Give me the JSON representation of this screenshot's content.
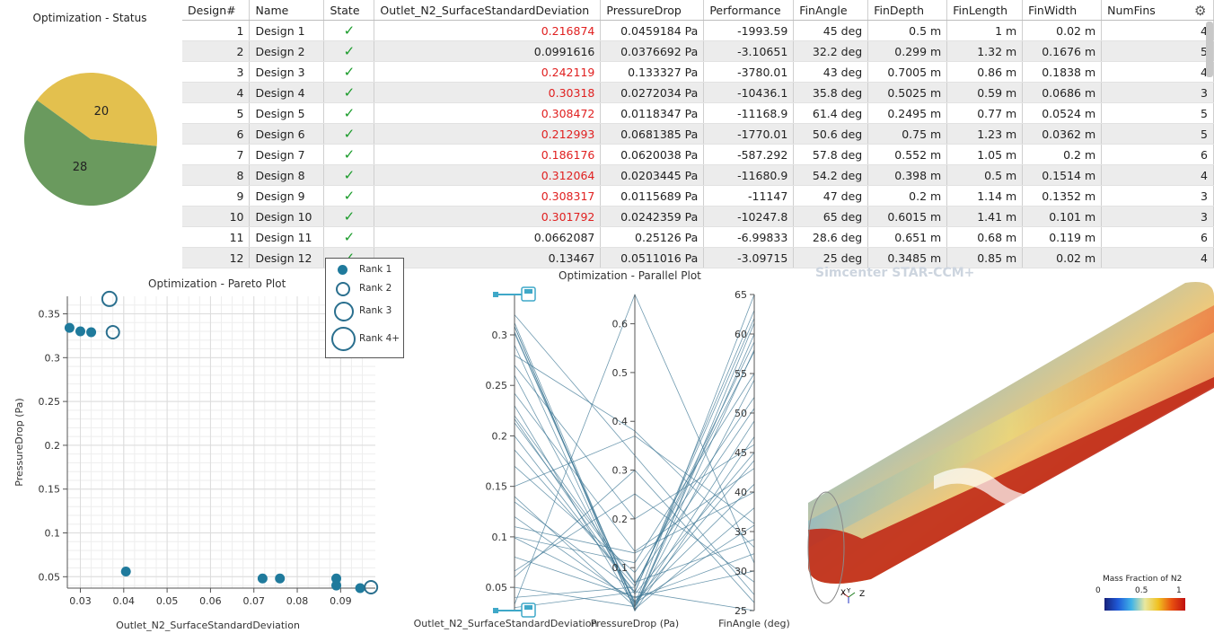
{
  "status_panel": {
    "title": "Optimization - Status",
    "slices": [
      {
        "label": "20",
        "value": 20,
        "color": "#e3c04e"
      },
      {
        "label": "28",
        "value": 28,
        "color": "#6a9a5e"
      }
    ]
  },
  "table": {
    "columns": [
      "Design#",
      "Name",
      "State",
      "Outlet_N2_SurfaceStandardDeviation",
      "PressureDrop",
      "Performance",
      "FinAngle",
      "FinDepth",
      "FinLength",
      "FinWidth",
      "NumFins"
    ],
    "rows": [
      {
        "id": "1",
        "name": "Design 1",
        "state": "✓",
        "std": "0.216874",
        "std_red": true,
        "pd": "0.0459184 Pa",
        "perf": "-1993.59",
        "angle": "45 deg",
        "depth": "0.5 m",
        "length": "1 m",
        "width": "0.02 m",
        "fins": "4"
      },
      {
        "id": "2",
        "name": "Design 2",
        "state": "✓",
        "std": "0.0991616",
        "std_red": false,
        "pd": "0.0376692 Pa",
        "perf": "-3.10651",
        "angle": "32.2 deg",
        "depth": "0.299 m",
        "length": "1.32 m",
        "width": "0.1676 m",
        "fins": "5"
      },
      {
        "id": "3",
        "name": "Design 3",
        "state": "✓",
        "std": "0.242119",
        "std_red": true,
        "pd": "0.133327 Pa",
        "perf": "-3780.01",
        "angle": "43 deg",
        "depth": "0.7005 m",
        "length": "0.86 m",
        "width": "0.1838 m",
        "fins": "4"
      },
      {
        "id": "4",
        "name": "Design 4",
        "state": "✓",
        "std": "0.30318",
        "std_red": true,
        "pd": "0.0272034 Pa",
        "perf": "-10436.1",
        "angle": "35.8 deg",
        "depth": "0.5025 m",
        "length": "0.59 m",
        "width": "0.0686 m",
        "fins": "3"
      },
      {
        "id": "5",
        "name": "Design 5",
        "state": "✓",
        "std": "0.308472",
        "std_red": true,
        "pd": "0.0118347 Pa",
        "perf": "-11168.9",
        "angle": "61.4 deg",
        "depth": "0.2495 m",
        "length": "0.77 m",
        "width": "0.0524 m",
        "fins": "5"
      },
      {
        "id": "6",
        "name": "Design 6",
        "state": "✓",
        "std": "0.212993",
        "std_red": true,
        "pd": "0.0681385 Pa",
        "perf": "-1770.01",
        "angle": "50.6 deg",
        "depth": "0.75 m",
        "length": "1.23 m",
        "width": "0.0362 m",
        "fins": "5"
      },
      {
        "id": "7",
        "name": "Design 7",
        "state": "✓",
        "std": "0.186176",
        "std_red": true,
        "pd": "0.0620038 Pa",
        "perf": "-587.292",
        "angle": "57.8 deg",
        "depth": "0.552 m",
        "length": "1.05 m",
        "width": "0.2 m",
        "fins": "6"
      },
      {
        "id": "8",
        "name": "Design 8",
        "state": "✓",
        "std": "0.312064",
        "std_red": true,
        "pd": "0.0203445 Pa",
        "perf": "-11680.9",
        "angle": "54.2 deg",
        "depth": "0.398 m",
        "length": "0.5 m",
        "width": "0.1514 m",
        "fins": "4"
      },
      {
        "id": "9",
        "name": "Design 9",
        "state": "✓",
        "std": "0.308317",
        "std_red": true,
        "pd": "0.0115689 Pa",
        "perf": "-11147",
        "angle": "47 deg",
        "depth": "0.2 m",
        "length": "1.14 m",
        "width": "0.1352 m",
        "fins": "3"
      },
      {
        "id": "10",
        "name": "Design 10",
        "state": "✓",
        "std": "0.301792",
        "std_red": true,
        "pd": "0.0242359 Pa",
        "perf": "-10247.8",
        "angle": "65 deg",
        "depth": "0.6015 m",
        "length": "1.41 m",
        "width": "0.101 m",
        "fins": "3"
      },
      {
        "id": "11",
        "name": "Design 11",
        "state": "✓",
        "std": "0.0662087",
        "std_red": false,
        "pd": "0.25126 Pa",
        "perf": "-6.99833",
        "angle": "28.6 deg",
        "depth": "0.651 m",
        "length": "0.68 m",
        "width": "0.119 m",
        "fins": "6"
      },
      {
        "id": "12",
        "name": "Design 12",
        "state": "✓",
        "std": "0.13467",
        "std_red": false,
        "pd": "0.0511016 Pa",
        "perf": "-3.09715",
        "angle": "25 deg",
        "depth": "0.3485 m",
        "length": "0.85 m",
        "width": "0.02 m",
        "fins": "4"
      }
    ]
  },
  "pareto": {
    "title": "Optimization - Pareto Plot",
    "legend": [
      "Rank 1",
      "Rank 2",
      "Rank 3",
      "Rank 4+"
    ]
  },
  "parallel": {
    "title": "Optimization - Parallel Plot"
  },
  "view3d": {
    "watermark": "Simcenter STAR-CCM+",
    "colorbar_title": "Mass Fraction of N2",
    "colorbar_ticks": [
      "0",
      "0.5",
      "1"
    ],
    "axis_labels": [
      "X",
      "Y",
      "Z"
    ]
  },
  "chart_data": [
    {
      "type": "scatter",
      "title": "Optimization - Pareto Plot",
      "xlabel": "Outlet_N2_SurfaceStandardDeviation",
      "ylabel": "PressureDrop (Pa)",
      "xlim": [
        0.027,
        0.098
      ],
      "ylim": [
        0.037,
        0.37
      ],
      "xticks": [
        "0.03",
        "0.04",
        "0.05",
        "0.06",
        "0.07",
        "0.08",
        "0.09"
      ],
      "yticks": [
        "0.05",
        "0.1",
        "0.15",
        "0.2",
        "0.25",
        "0.3",
        "0.35"
      ],
      "series": [
        {
          "name": "Rank 1",
          "points": [
            [
              0.0275,
              0.334
            ],
            [
              0.03,
              0.33
            ],
            [
              0.0325,
              0.329
            ],
            [
              0.0405,
              0.056
            ],
            [
              0.072,
              0.048
            ],
            [
              0.076,
              0.048
            ],
            [
              0.089,
              0.048
            ],
            [
              0.089,
              0.04
            ],
            [
              0.0945,
              0.037
            ]
          ]
        },
        {
          "name": "Rank 2",
          "points": [
            [
              0.0375,
              0.329
            ],
            [
              0.097,
              0.038
            ]
          ]
        },
        {
          "name": "Rank 3",
          "points": [
            [
              0.0367,
              0.367
            ]
          ]
        }
      ]
    },
    {
      "type": "line",
      "title": "Optimization - Parallel Plot",
      "axes": [
        {
          "label": "Outlet_N2_SurfaceStandardDeviation",
          "ticks": [
            "0.05",
            "0.1",
            "0.15",
            "0.2",
            "0.25",
            "0.3"
          ],
          "range": [
            0.027,
            0.34
          ]
        },
        {
          "label": "PressureDrop (Pa)",
          "ticks": [
            "0.1",
            "0.2",
            "0.3",
            "0.4",
            "0.5",
            "0.6"
          ],
          "range": [
            0.012,
            0.66
          ]
        },
        {
          "label": "FinAngle (deg)",
          "ticks": [
            "25",
            "30",
            "35",
            "40",
            "45",
            "50",
            "55",
            "60",
            "65"
          ],
          "range": [
            25,
            65
          ]
        }
      ],
      "lines": [
        [
          0.216874,
          0.0459184,
          45
        ],
        [
          0.0991616,
          0.0376692,
          32.2
        ],
        [
          0.242119,
          0.133327,
          43
        ],
        [
          0.30318,
          0.0272034,
          35.8
        ],
        [
          0.308472,
          0.0118347,
          61.4
        ],
        [
          0.212993,
          0.0681385,
          50.6
        ],
        [
          0.186176,
          0.0620038,
          57.8
        ],
        [
          0.312064,
          0.0203445,
          54.2
        ],
        [
          0.308317,
          0.0115689,
          47
        ],
        [
          0.301792,
          0.0242359,
          65
        ],
        [
          0.0662087,
          0.25126,
          28.6
        ],
        [
          0.13467,
          0.0511016,
          25
        ],
        [
          0.32,
          0.33,
          27
        ],
        [
          0.28,
          0.38,
          33
        ],
        [
          0.26,
          0.03,
          41
        ],
        [
          0.23,
          0.02,
          58
        ],
        [
          0.2,
          0.05,
          63
        ],
        [
          0.17,
          0.09,
          52
        ],
        [
          0.15,
          0.37,
          36
        ],
        [
          0.12,
          0.03,
          44
        ],
        [
          0.1,
          0.11,
          55
        ],
        [
          0.08,
          0.04,
          30
        ],
        [
          0.06,
          0.3,
          26
        ],
        [
          0.05,
          0.02,
          49
        ],
        [
          0.04,
          0.06,
          59
        ],
        [
          0.033,
          0.66,
          31
        ],
        [
          0.03,
          0.05,
          62
        ],
        [
          0.29,
          0.015,
          38
        ],
        [
          0.27,
          0.2,
          46
        ],
        [
          0.22,
          0.07,
          34
        ],
        [
          0.14,
          0.02,
          60
        ],
        [
          0.11,
          0.13,
          40
        ]
      ]
    }
  ]
}
